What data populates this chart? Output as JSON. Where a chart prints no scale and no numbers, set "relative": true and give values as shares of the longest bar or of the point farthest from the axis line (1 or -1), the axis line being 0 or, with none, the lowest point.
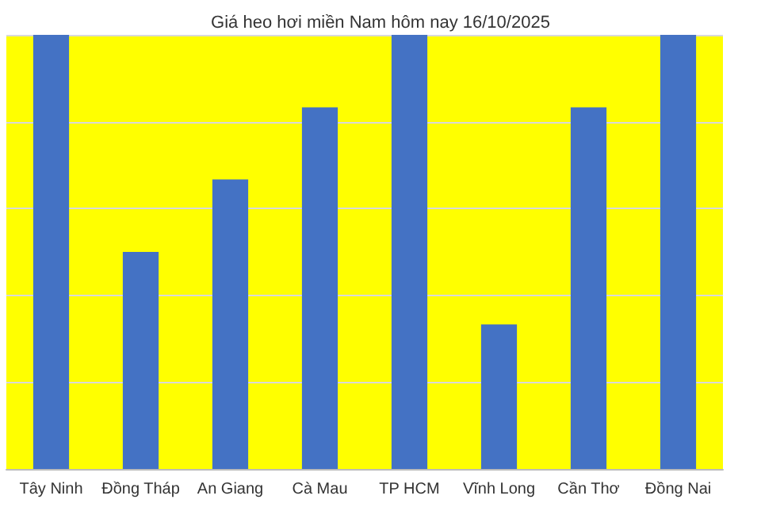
{
  "chart_data": {
    "type": "bar",
    "title": "Giá heo hơi miền Nam hôm nay 16/10/2025",
    "categories": [
      "Tây Ninh",
      "Đồng Tháp",
      "An Giang",
      "Cà Mau",
      "TP HCM",
      "Vĩnh Long",
      "Cần Thơ",
      "Đồng Nai"
    ],
    "values": [
      1,
      0.5,
      0.667,
      0.833,
      1,
      0.333,
      0.833,
      1
    ],
    "color": "#4472c4",
    "relative": true,
    "grid": "y"
  }
}
